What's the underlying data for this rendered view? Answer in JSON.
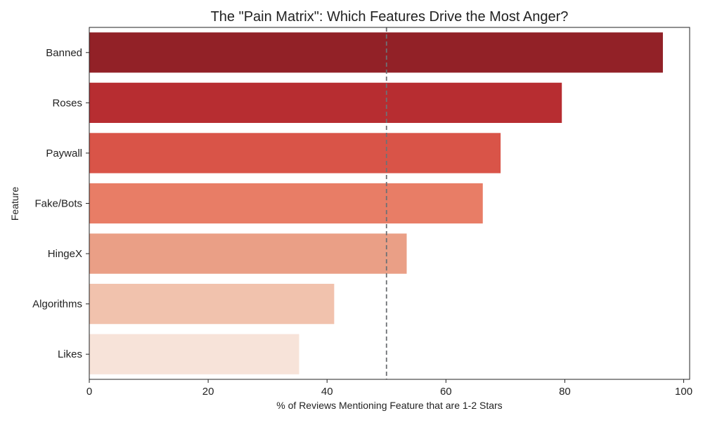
{
  "chart_data": {
    "type": "bar",
    "orientation": "horizontal",
    "title": "The \"Pain Matrix\": Which Features Drive the Most Anger?",
    "xlabel": "% of Reviews Mentioning Feature that are 1-2 Stars",
    "ylabel": "Feature",
    "categories": [
      "Banned",
      "Roses",
      "Paywall",
      "Fake/Bots",
      "HingeX",
      "Algorithms",
      "Likes"
    ],
    "values": [
      96.5,
      79.5,
      69.2,
      66.2,
      53.4,
      41.2,
      35.3
    ],
    "colors": [
      "#922127",
      "#b72d31",
      "#d95448",
      "#e87d66",
      "#ea9f86",
      "#f1c2ad",
      "#f7e3d9"
    ],
    "xlim": [
      0,
      101
    ],
    "xticks": [
      0,
      20,
      40,
      60,
      80,
      100
    ],
    "reference_line": {
      "x": 50,
      "style": "dashed",
      "color": "#6e7175"
    },
    "grid": false,
    "legend": "none"
  }
}
